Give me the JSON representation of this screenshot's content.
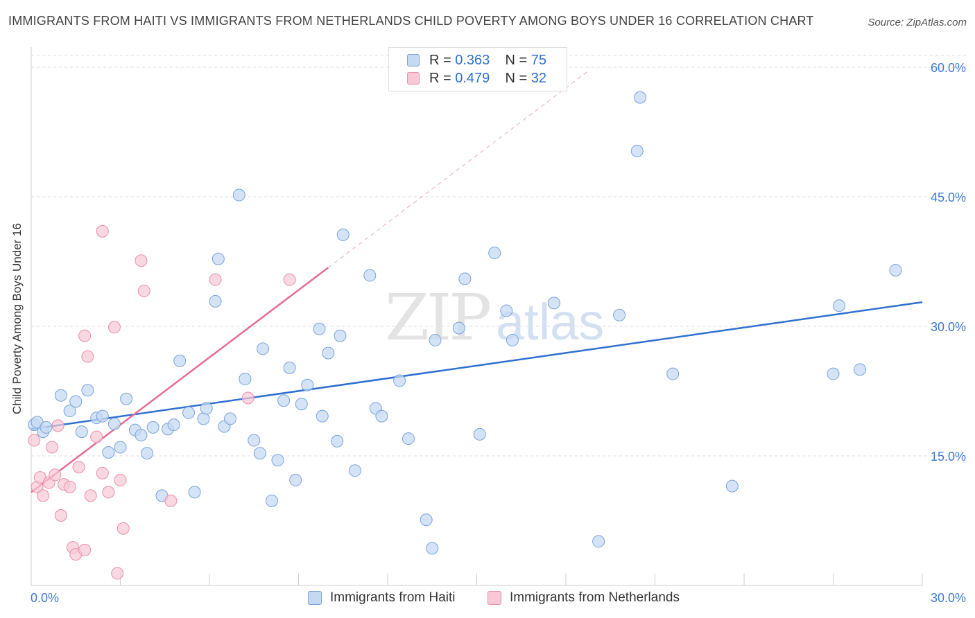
{
  "title": "IMMIGRANTS FROM HAITI VS IMMIGRANTS FROM NETHERLANDS CHILD POVERTY AMONG BOYS UNDER 16 CORRELATION CHART",
  "source": "Source: ZipAtlas.com",
  "watermark": {
    "zip": "ZIP",
    "atlas": "atlas"
  },
  "legend": {
    "rows": [
      {
        "r_label": "R =",
        "r_value": "0.363",
        "n_label": "N =",
        "n_value": "75"
      },
      {
        "r_label": "R =",
        "r_value": "0.479",
        "n_label": "N =",
        "n_value": "32"
      }
    ]
  },
  "colors": {
    "haiti_fill": "#c6d9f3",
    "haiti_stroke": "#7aa3dc",
    "haiti_line": "#2f6fd0",
    "neth_fill": "#f8c8d6",
    "neth_stroke": "#e98fab",
    "neth_line": "#e56c94",
    "axis_text": "#3d7bd6",
    "grid": "#dddddd"
  },
  "chart_data": {
    "type": "scatter",
    "title": "IMMIGRANTS FROM HAITI VS IMMIGRANTS FROM NETHERLANDS CHILD POVERTY AMONG BOYS UNDER 16 CORRELATION CHART",
    "xlabel": "",
    "ylabel": "Child Poverty Among Boys Under 16",
    "xlim": [
      0,
      30
    ],
    "ylim": [
      0,
      60
    ],
    "x_tick_labels": [
      "0.0%",
      "30.0%"
    ],
    "y_tick_labels": [
      "15.0%",
      "30.0%",
      "45.0%",
      "60.0%"
    ],
    "y_ticks": [
      15,
      30,
      45,
      60
    ],
    "grid": true,
    "legend_placement": "top-center",
    "series": [
      {
        "name": "Immigrants from Haiti",
        "r": 0.363,
        "n": 75,
        "trend": {
          "x": [
            0,
            30
          ],
          "y": [
            18.1,
            32.8
          ]
        },
        "points": [
          [
            0.1,
            18.6
          ],
          [
            0.2,
            18.9
          ],
          [
            0.4,
            17.8
          ],
          [
            0.5,
            18.3
          ],
          [
            1.0,
            22.0
          ],
          [
            1.3,
            20.2
          ],
          [
            1.5,
            21.3
          ],
          [
            1.7,
            17.8
          ],
          [
            1.9,
            22.6
          ],
          [
            2.2,
            19.4
          ],
          [
            2.4,
            19.6
          ],
          [
            2.6,
            15.4
          ],
          [
            2.8,
            18.7
          ],
          [
            3.0,
            16.0
          ],
          [
            3.2,
            21.6
          ],
          [
            3.5,
            18.0
          ],
          [
            3.7,
            17.4
          ],
          [
            3.9,
            15.3
          ],
          [
            4.1,
            18.3
          ],
          [
            4.4,
            10.4
          ],
          [
            4.6,
            18.1
          ],
          [
            4.8,
            18.6
          ],
          [
            5.0,
            26.0
          ],
          [
            5.3,
            20.0
          ],
          [
            5.5,
            10.8
          ],
          [
            5.8,
            19.3
          ],
          [
            5.9,
            20.5
          ],
          [
            6.2,
            32.9
          ],
          [
            6.3,
            37.8
          ],
          [
            6.5,
            18.4
          ],
          [
            6.7,
            19.3
          ],
          [
            7.0,
            45.2
          ],
          [
            7.2,
            23.9
          ],
          [
            7.5,
            16.8
          ],
          [
            7.7,
            15.3
          ],
          [
            7.8,
            27.4
          ],
          [
            8.1,
            9.8
          ],
          [
            8.3,
            14.5
          ],
          [
            8.5,
            21.4
          ],
          [
            8.7,
            25.2
          ],
          [
            8.9,
            12.2
          ],
          [
            9.1,
            21.0
          ],
          [
            9.3,
            23.2
          ],
          [
            9.7,
            29.7
          ],
          [
            9.8,
            19.6
          ],
          [
            10.0,
            26.9
          ],
          [
            10.3,
            16.7
          ],
          [
            10.4,
            28.9
          ],
          [
            10.5,
            40.6
          ],
          [
            10.9,
            13.3
          ],
          [
            11.4,
            35.9
          ],
          [
            11.6,
            20.5
          ],
          [
            11.8,
            19.6
          ],
          [
            12.4,
            23.7
          ],
          [
            12.7,
            17.0
          ],
          [
            13.3,
            7.6
          ],
          [
            13.5,
            4.3
          ],
          [
            13.6,
            28.4
          ],
          [
            14.4,
            29.8
          ],
          [
            14.6,
            35.5
          ],
          [
            15.1,
            17.5
          ],
          [
            15.6,
            38.5
          ],
          [
            16.0,
            31.8
          ],
          [
            16.2,
            28.4
          ],
          [
            17.6,
            32.7
          ],
          [
            19.1,
            5.1
          ],
          [
            19.8,
            31.3
          ],
          [
            20.4,
            50.3
          ],
          [
            20.5,
            56.5
          ],
          [
            21.6,
            24.5
          ],
          [
            23.6,
            11.5
          ],
          [
            27.0,
            24.5
          ],
          [
            27.2,
            32.4
          ],
          [
            27.9,
            25.0
          ],
          [
            29.1,
            36.5
          ]
        ]
      },
      {
        "name": "Immigrants from Netherlands",
        "r": 0.479,
        "n": 32,
        "trend": {
          "x": [
            0,
            10
          ],
          "y": [
            10.8,
            36.8
          ]
        },
        "points": [
          [
            0.1,
            16.8
          ],
          [
            0.2,
            11.4
          ],
          [
            0.3,
            12.5
          ],
          [
            0.4,
            10.4
          ],
          [
            0.6,
            11.9
          ],
          [
            0.7,
            16.0
          ],
          [
            0.8,
            12.8
          ],
          [
            0.9,
            18.5
          ],
          [
            1.0,
            8.1
          ],
          [
            1.1,
            11.7
          ],
          [
            1.3,
            11.4
          ],
          [
            1.6,
            13.7
          ],
          [
            1.4,
            4.4
          ],
          [
            1.5,
            3.6
          ],
          [
            1.8,
            4.1
          ],
          [
            1.8,
            28.9
          ],
          [
            1.9,
            26.5
          ],
          [
            2.0,
            10.4
          ],
          [
            2.2,
            17.2
          ],
          [
            2.4,
            13.0
          ],
          [
            2.4,
            41.0
          ],
          [
            2.6,
            10.8
          ],
          [
            2.8,
            29.9
          ],
          [
            2.9,
            1.4
          ],
          [
            3.0,
            12.2
          ],
          [
            3.1,
            6.6
          ],
          [
            3.7,
            37.6
          ],
          [
            3.8,
            34.1
          ],
          [
            4.7,
            9.8
          ],
          [
            6.2,
            35.4
          ],
          [
            7.3,
            21.7
          ],
          [
            8.7,
            35.4
          ]
        ]
      }
    ]
  },
  "bottom_legend": [
    "Immigrants from Haiti",
    "Immigrants from Netherlands"
  ]
}
